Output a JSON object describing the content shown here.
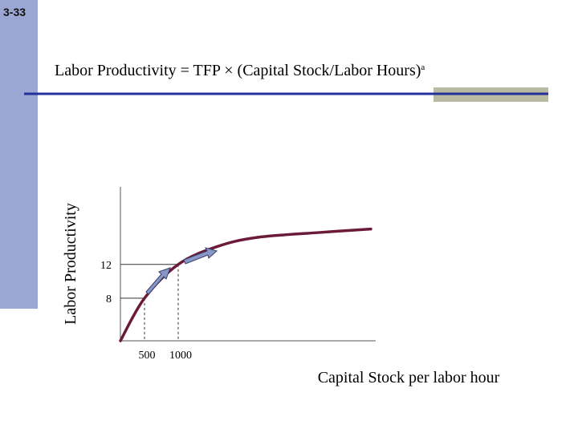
{
  "slide_number": "3-33",
  "chart_data": {
    "type": "line",
    "title": "Labor Productivity = TFP × (Capital Stock/Labor Hours)",
    "title_note": "a",
    "x_label": "Capital Stock per labor hour",
    "y_label": "Labor Productivity",
    "x": [
      143,
      500,
      1000,
      1571,
      2167,
      3119,
      3857
    ],
    "series": [
      {
        "color": "#6b1a3a",
        "values": [
          2.95,
          8,
          12,
          14.1,
          15.2,
          15.8,
          16.2
        ]
      }
    ],
    "xlim": [
      143,
      3929
    ],
    "xticks": [
      500,
      1000
    ],
    "ylim": [
      2.95,
      21.2
    ],
    "yticks": [
      8,
      12
    ]
  }
}
